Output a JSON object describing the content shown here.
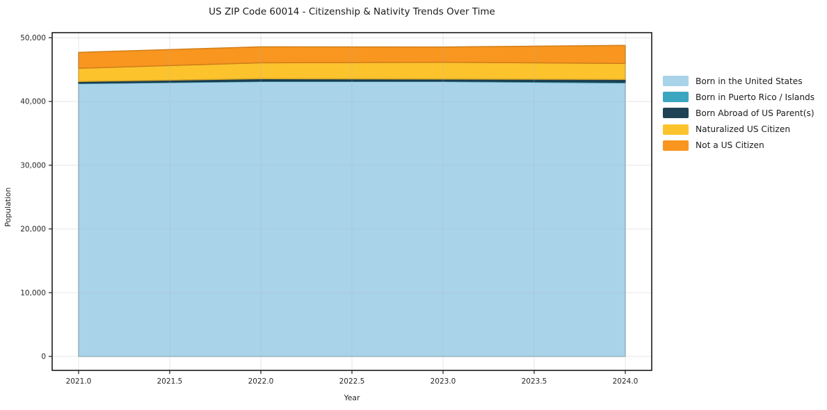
{
  "title": "US ZIP Code 60014 - Citizenship & Nativity Trends Over Time",
  "chart_data": {
    "type": "area",
    "stacked": true,
    "title": "US ZIP Code 60014 - Citizenship & Nativity Trends Over Time",
    "xlabel": "Year",
    "ylabel": "Population",
    "x": [
      2021,
      2022,
      2023,
      2024
    ],
    "series": [
      {
        "name": "Born in the United States",
        "color": "#a8d3e9",
        "values": [
          42810,
          43140,
          43140,
          42920
        ]
      },
      {
        "name": "Born in Puerto Rico / Islands",
        "color": "#3ba6c0",
        "values": [
          80,
          80,
          80,
          120
        ]
      },
      {
        "name": "Born Abroad of US Parent(s)",
        "color": "#1f4254",
        "values": [
          250,
          350,
          300,
          420
        ]
      },
      {
        "name": "Naturalized US Citizen",
        "color": "#fcc32d",
        "values": [
          2070,
          2500,
          2630,
          2510
        ]
      },
      {
        "name": "Not a US Citizen",
        "color": "#f8961f",
        "values": [
          2500,
          2510,
          2400,
          2830
        ]
      }
    ],
    "totals": [
      47710,
      48580,
      48550,
      48800
    ],
    "xlim": [
      2020.855,
      2024.145
    ],
    "ylim": [
      -2200,
      50800
    ],
    "xticks": {
      "values": [
        2021.0,
        2021.5,
        2022.0,
        2022.5,
        2023.0,
        2023.5,
        2024.0
      ],
      "labels": [
        "2021.0",
        "2021.5",
        "2022.0",
        "2022.5",
        "2023.0",
        "2023.5",
        "2024.0"
      ]
    },
    "yticks": {
      "values": [
        0,
        10000,
        20000,
        30000,
        40000,
        50000
      ],
      "labels": [
        "0",
        "10,000",
        "20,000",
        "30,000",
        "40,000",
        "50,000"
      ]
    },
    "grid": true,
    "legend_position": "right-outside",
    "colors": {
      "axis": "#1a1a1a",
      "tick_label": "#262626",
      "grid": "#b3b3b3",
      "background": "#ffffff"
    }
  }
}
